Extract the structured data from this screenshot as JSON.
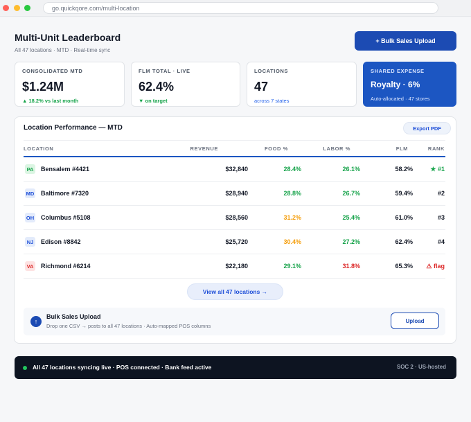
{
  "browser": {
    "url": "go.quickqore.com/multi-location"
  },
  "header": {
    "title": "Multi-Unit Leaderboard",
    "subtitle": "All 47 locations · MTD · Real-time sync",
    "bulk_button": "+ Bulk Sales Upload"
  },
  "kpis": [
    {
      "label": "CONSOLIDATED MTD",
      "value": "$1.24M",
      "note": "▲ 18.2% vs last month"
    },
    {
      "label": "FLM TOTAL · LIVE",
      "value": "62.4%",
      "note": "▼ on target"
    },
    {
      "label": "LOCATIONS",
      "value": "47",
      "note": "across 7 states"
    },
    {
      "label": "SHARED EXPENSE",
      "value": "Royalty · 6%",
      "note": "Auto-allocated · 47 stores"
    }
  ],
  "table": {
    "title": "Location Performance — MTD",
    "export_label": "Export PDF",
    "columns": [
      "LOCATION",
      "REVENUE",
      "FOOD %",
      "LABOR %",
      "FLM",
      "RANK"
    ],
    "rows": [
      {
        "state": "PA",
        "name": "Bensalem #4421",
        "revenue": "$32,840",
        "food": "28.4%",
        "labor": "26.1%",
        "flm": "58.2%",
        "rank": "★ #1"
      },
      {
        "state": "MD",
        "name": "Baltimore #7320",
        "revenue": "$28,940",
        "food": "28.8%",
        "labor": "26.7%",
        "flm": "59.4%",
        "rank": "#2"
      },
      {
        "state": "OH",
        "name": "Columbus #5108",
        "revenue": "$28,560",
        "food": "31.2%",
        "labor": "25.4%",
        "flm": "61.0%",
        "rank": "#3"
      },
      {
        "state": "NJ",
        "name": "Edison #8842",
        "revenue": "$25,720",
        "food": "30.4%",
        "labor": "27.2%",
        "flm": "62.4%",
        "rank": "#4"
      },
      {
        "state": "VA",
        "name": "Richmond #6214",
        "revenue": "$22,180",
        "food": "29.1%",
        "labor": "31.8%",
        "flm": "65.3%",
        "rank": "⚠ flag"
      }
    ],
    "view_all": "View all 47 locations →"
  },
  "upload": {
    "icon": "upload-icon",
    "title": "Bulk Sales Upload",
    "subtitle": "Drop one CSV → posts to all 47 locations · Auto-mapped POS columns",
    "button": "Upload"
  },
  "status": {
    "text": "All 47 locations syncing live · POS connected · Bank feed active",
    "right": "SOC 2 · US-hosted"
  },
  "colors": {
    "accent": "#1c4bb3",
    "good": "#16a34a",
    "warn": "#f59e0b",
    "bad": "#dc2626"
  }
}
